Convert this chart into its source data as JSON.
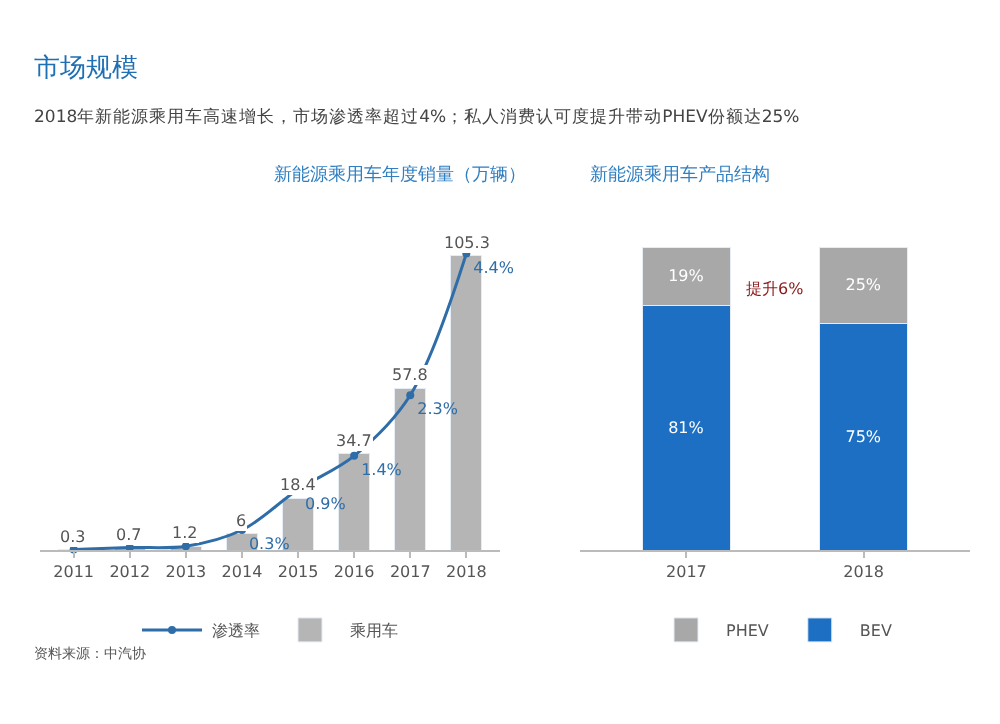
{
  "chart_data": [
    {
      "type": "bar",
      "title": "新能源乘用车年度销量（万辆）",
      "annotations": [
        "市场规模",
        "2018年新能源乘用车高速增长，市场渗透率超过4%；私人消费认可度提升带动PHEV份额达25%",
        "资料来源：中汽协"
      ],
      "categories": [
        "2011",
        "2012",
        "2013",
        "2014",
        "2015",
        "2016",
        "2017",
        "2018"
      ],
      "series": [
        {
          "name": "乘用车",
          "color": "#b5b5b5",
          "values": [
            0.3,
            0.7,
            1.2,
            6,
            18.4,
            34.7,
            57.8,
            105.3
          ],
          "value_labels": [
            "0.3",
            "0.7",
            "1.2",
            "6",
            "18.4",
            "34.7",
            "57.8",
            "105.3"
          ]
        },
        {
          "name": "渗透率",
          "type": "line",
          "axis": "y2",
          "color": "#2e6da8",
          "marker": "circle",
          "values": [
            0.01,
            0.04,
            0.06,
            0.3,
            0.9,
            1.4,
            2.3,
            4.4
          ],
          "value_labels": [
            null,
            null,
            null,
            "0.3%",
            "0.9%",
            "1.4%",
            "2.3%",
            "4.4%"
          ]
        }
      ],
      "tick_labels": "x",
      "legend": "bottom"
    },
    {
      "type": "bar",
      "stacked": true,
      "title": "新能源乘用车产品结构",
      "annotations": [
        "提升6%"
      ],
      "categories": [
        "2017",
        "2018"
      ],
      "series": [
        {
          "name": "BEV",
          "color": "#1c6fc2",
          "values": [
            81,
            75
          ],
          "value_labels": [
            "81%",
            "75%"
          ]
        },
        {
          "name": "PHEV",
          "color": "#a8a8a8",
          "values": [
            19,
            25
          ],
          "value_labels": [
            "19%",
            "25%"
          ]
        }
      ],
      "tick_labels": "x",
      "legend": "bottom"
    }
  ]
}
